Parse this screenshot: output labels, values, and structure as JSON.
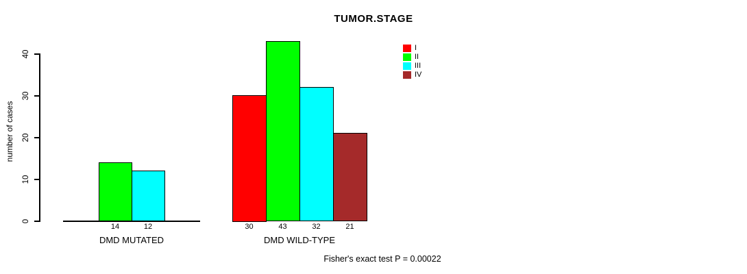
{
  "chart_data": {
    "type": "bar",
    "title": "TUMOR.STAGE",
    "xlabel": "",
    "ylabel": "number of cases",
    "ylim": [
      0,
      43
    ],
    "yticks": [
      0,
      10,
      20,
      30,
      40
    ],
    "grid": false,
    "legend_position": "top-right",
    "series_names": [
      "I",
      "II",
      "III",
      "IV"
    ],
    "series_colors": [
      "#ff0000",
      "#00ff00",
      "#00ffff",
      "#a52a2a"
    ],
    "categories": [
      "DMD MUTATED",
      "DMD WILD-TYPE"
    ],
    "groups": [
      {
        "label": "DMD MUTATED",
        "values": [
          0,
          14,
          12,
          0
        ]
      },
      {
        "label": "DMD WILD-TYPE",
        "values": [
          30,
          43,
          32,
          21
        ]
      }
    ],
    "annotation": "Fisher's exact test P = 0.00022"
  }
}
